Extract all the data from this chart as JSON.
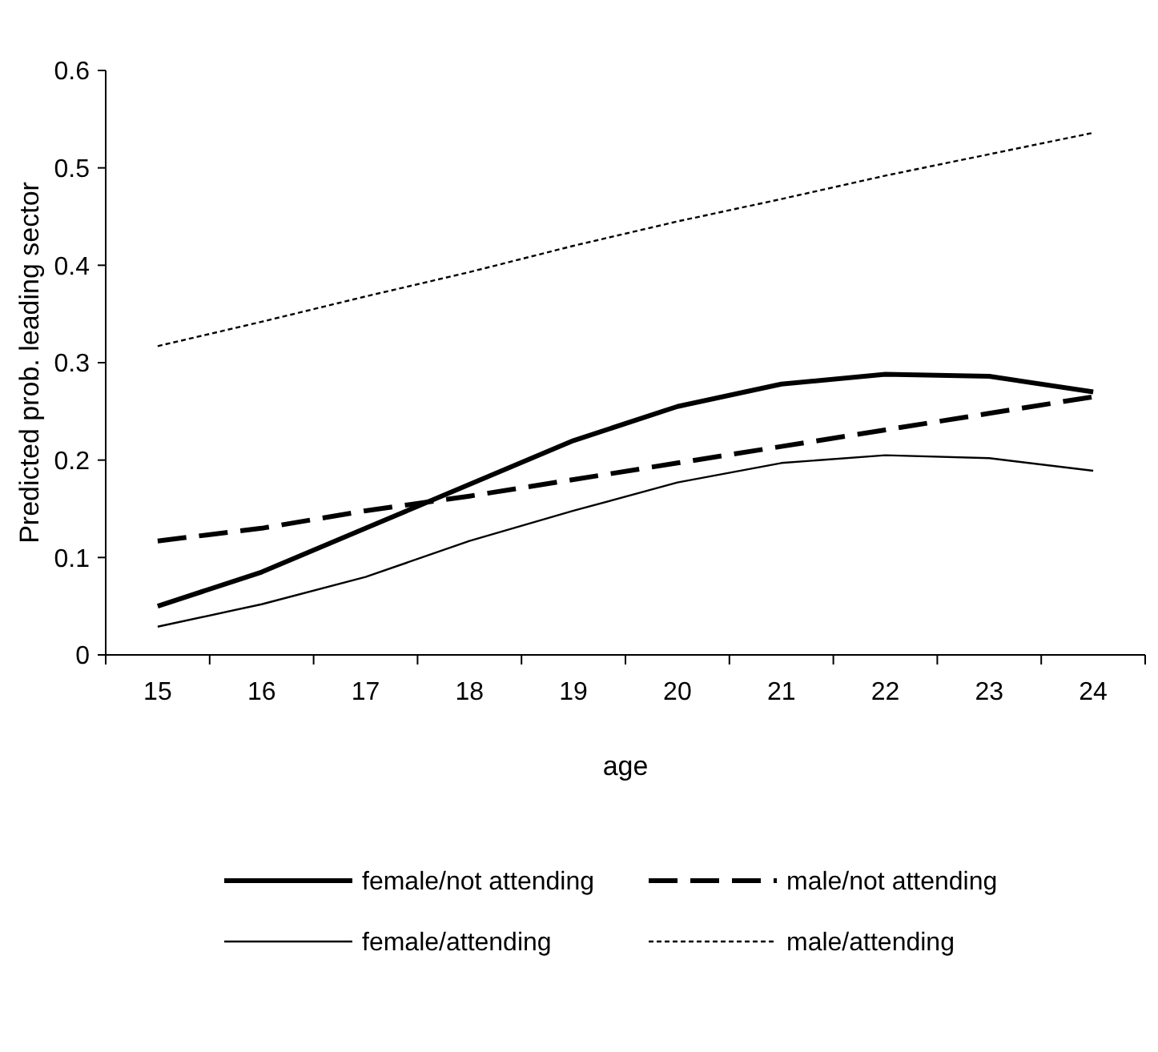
{
  "chart_data": {
    "type": "line",
    "xlabel": "age",
    "ylabel": "Predicted prob. leading sector",
    "categories": [
      "15",
      "16",
      "17",
      "18",
      "19",
      "20",
      "21",
      "22",
      "23",
      "24"
    ],
    "ylim": [
      0,
      0.6
    ],
    "yticks": [
      0,
      0.1,
      0.2,
      0.3,
      0.4,
      0.5,
      0.6
    ],
    "grid": false,
    "legend": "bottom",
    "marker": "none",
    "series": [
      {
        "name": "female/not attending",
        "color": "#000000",
        "line_style": "solid",
        "values": [
          0.05,
          0.085,
          0.13,
          0.175,
          0.22,
          0.255,
          0.278,
          0.288,
          0.286,
          0.27
        ]
      },
      {
        "name": "male/not attending",
        "color": "#000000",
        "line_style": "dashed",
        "values": [
          0.117,
          0.13,
          0.148,
          0.163,
          0.18,
          0.197,
          0.214,
          0.231,
          0.248,
          0.265
        ]
      },
      {
        "name": "female/attending",
        "color": "#000000",
        "line_style": "solid",
        "values": [
          0.029,
          0.052,
          0.08,
          0.117,
          0.148,
          0.177,
          0.197,
          0.205,
          0.202,
          0.189
        ]
      },
      {
        "name": "male/attending",
        "color": "#000000",
        "line_style": "dotted",
        "values": [
          0.317,
          0.342,
          0.368,
          0.393,
          0.42,
          0.445,
          0.468,
          0.492,
          0.514,
          0.536
        ]
      }
    ]
  }
}
